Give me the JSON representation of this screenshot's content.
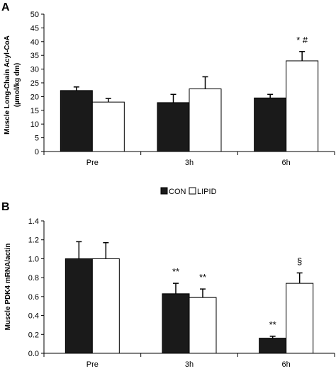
{
  "legend": {
    "con_label": "CON",
    "lipid_label": "LIPID",
    "con_color": "#1a1a1a",
    "lipid_color": "#ffffff"
  },
  "chart_data": [
    {
      "type": "bar",
      "panel_label": "A",
      "ylabel_line1": "Muscle Long-Chain Acyl-CoA",
      "ylabel_line2": "(µmol/kg dm)",
      "categories": [
        "Pre",
        "3h",
        "6h"
      ],
      "ylim": [
        0,
        50
      ],
      "yticks": [
        0,
        5,
        10,
        15,
        20,
        25,
        30,
        35,
        40,
        45,
        50
      ],
      "series": [
        {
          "name": "CON",
          "values": [
            22.2,
            17.8,
            19.5
          ],
          "errors": [
            1.3,
            3.0,
            1.3
          ]
        },
        {
          "name": "LIPID",
          "values": [
            18.0,
            22.8,
            33.0
          ],
          "errors": [
            1.3,
            4.4,
            3.4
          ]
        }
      ],
      "annotations": [
        {
          "category": "6h",
          "series": "LIPID",
          "text": "* #"
        }
      ]
    },
    {
      "type": "bar",
      "panel_label": "B",
      "ylabel_line1": "Muscle PDK4 mRNA/actin",
      "categories": [
        "Pre",
        "3h",
        "6h"
      ],
      "ylim": [
        0,
        1.4
      ],
      "yticks": [
        "0.0",
        "0.2",
        "0.4",
        "0.6",
        "0.8",
        "1.0",
        "1.2",
        "1.4"
      ],
      "series": [
        {
          "name": "CON",
          "values": [
            1.0,
            0.63,
            0.16
          ],
          "errors": [
            0.18,
            0.11,
            0.02
          ]
        },
        {
          "name": "LIPID",
          "values": [
            1.0,
            0.59,
            0.74
          ],
          "errors": [
            0.17,
            0.09,
            0.11
          ]
        }
      ],
      "annotations": [
        {
          "category": "3h",
          "series": "CON",
          "text": "**"
        },
        {
          "category": "3h",
          "series": "LIPID",
          "text": "**"
        },
        {
          "category": "6h",
          "series": "CON",
          "text": "**"
        },
        {
          "category": "6h",
          "series": "LIPID",
          "text": "§"
        }
      ]
    }
  ]
}
